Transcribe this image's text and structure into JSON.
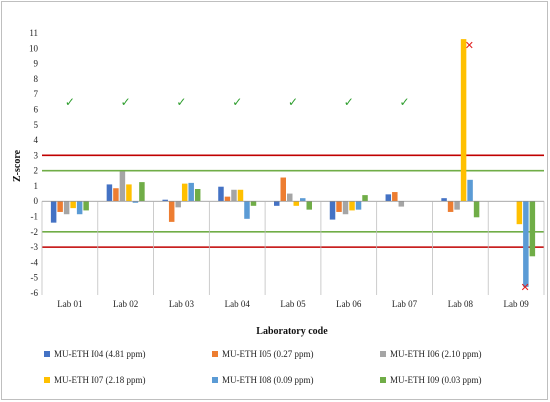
{
  "chart_data": {
    "type": "bar",
    "title": "",
    "xlabel": "Laboratory code",
    "ylabel": "Z-score",
    "ylim": [
      -6,
      11
    ],
    "yticks": [
      -6,
      -5,
      -4,
      -3,
      -2,
      -1,
      0,
      1,
      2,
      3,
      4,
      5,
      6,
      7,
      8,
      9,
      10,
      11
    ],
    "categories": [
      "Lab 01",
      "Lab 02",
      "Lab 03",
      "Lab 04",
      "Lab 05",
      "Lab 06",
      "Lab 07",
      "Lab 08",
      "Lab 09"
    ],
    "series": [
      {
        "name": "MU-ETH I04 (4.81 ppm)",
        "color": "#4472C4",
        "values": [
          -1.4,
          1.1,
          0.1,
          0.95,
          -0.3,
          -1.2,
          0.45,
          0.2,
          null
        ]
      },
      {
        "name": "MU-ETH I05 (0.27 ppm)",
        "color": "#ED7D31",
        "values": [
          -0.7,
          0.85,
          -1.35,
          0.3,
          1.55,
          -0.7,
          0.6,
          -0.7,
          null
        ]
      },
      {
        "name": "MU-ETH I06 (2.10 ppm)",
        "color": "#A5A5A5",
        "values": [
          -0.85,
          1.95,
          -0.4,
          0.75,
          0.5,
          -0.85,
          -0.35,
          -0.55,
          null
        ]
      },
      {
        "name": "MU-ETH I07 (2.18 ppm)",
        "color": "#FFC000",
        "values": [
          -0.45,
          1.1,
          1.15,
          0.75,
          -0.3,
          -0.6,
          null,
          10.6,
          -1.5
        ]
      },
      {
        "name": "MU-ETH I08 (0.09 ppm)",
        "color": "#5B9BD5",
        "values": [
          -0.85,
          -0.1,
          1.2,
          -1.15,
          0.2,
          -0.55,
          null,
          1.4,
          -5.6
        ]
      },
      {
        "name": "MU-ETH I09 (0.03 ppm)",
        "color": "#70AD47",
        "values": [
          -0.6,
          1.25,
          0.8,
          -0.3,
          -0.55,
          0.4,
          null,
          -1.05,
          -3.6
        ]
      }
    ],
    "reference_lines": [
      {
        "value": 3,
        "color": "#C00000"
      },
      {
        "value": 2,
        "color": "#70AD47"
      },
      {
        "value": -2,
        "color": "#70AD47"
      },
      {
        "value": -3,
        "color": "#C00000"
      }
    ],
    "annotations": [
      {
        "category": "Lab 01",
        "symbol": "✓",
        "color": "#2E9E2E",
        "y": 6.5
      },
      {
        "category": "Lab 02",
        "symbol": "✓",
        "color": "#2E9E2E",
        "y": 6.5
      },
      {
        "category": "Lab 03",
        "symbol": "✓",
        "color": "#2E9E2E",
        "y": 6.5
      },
      {
        "category": "Lab 04",
        "symbol": "✓",
        "color": "#2E9E2E",
        "y": 6.5
      },
      {
        "category": "Lab 05",
        "symbol": "✓",
        "color": "#2E9E2E",
        "y": 6.5
      },
      {
        "category": "Lab 06",
        "symbol": "✓",
        "color": "#2E9E2E",
        "y": 6.5
      },
      {
        "category": "Lab 07",
        "symbol": "✓",
        "color": "#2E9E2E",
        "y": 6.5
      },
      {
        "category": "Lab 08",
        "symbol": "✕",
        "color": "#E02020",
        "y": 10.2
      },
      {
        "category": "Lab 09",
        "symbol": "✕",
        "color": "#E02020",
        "y": -5.6
      }
    ],
    "grid": false,
    "legend_position": "bottom"
  }
}
